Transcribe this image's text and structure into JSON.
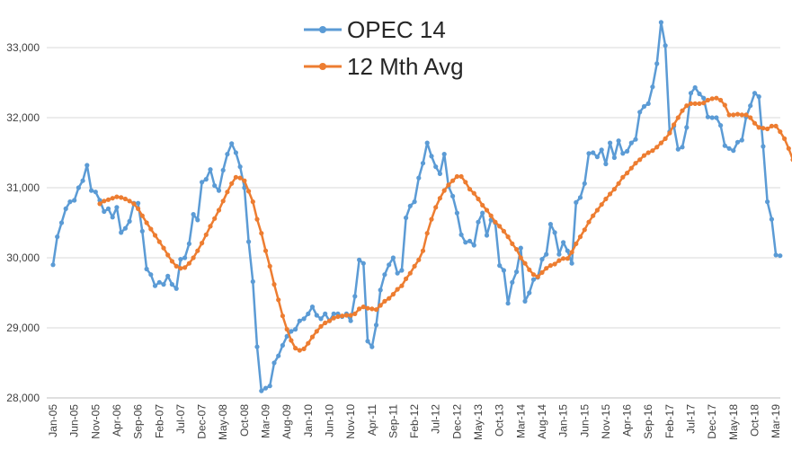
{
  "chart_data": {
    "type": "line",
    "title": "",
    "xlabel": "",
    "ylabel": "",
    "ylim": [
      28000,
      33500
    ],
    "yticks": [
      28000,
      29000,
      30000,
      31000,
      32000,
      33000
    ],
    "ytick_labels": [
      "28,000",
      "29,000",
      "30,000",
      "31,000",
      "32,000",
      "33,000"
    ],
    "xtick_labels": [
      "Jan-05",
      "Jun-05",
      "Nov-05",
      "Apr-06",
      "Sep-06",
      "Feb-07",
      "Jul-07",
      "Dec-07",
      "May-08",
      "Oct-08",
      "Mar-09",
      "Aug-09",
      "Jan-10",
      "Jun-10",
      "Nov-10",
      "Apr-11",
      "Sep-11",
      "Feb-12",
      "Jul-12",
      "Dec-12",
      "May-13",
      "Oct-13",
      "Mar-14",
      "Aug-14",
      "Jan-15",
      "Jun-15",
      "Nov-15",
      "Apr-16",
      "Sep-16",
      "Feb-17",
      "Jul-17",
      "Dec-17",
      "May-18",
      "Oct-18",
      "Mar-19"
    ],
    "grid": true,
    "legend_position": "top-center",
    "series": [
      {
        "name": "OPEC 14",
        "color": "#5B9BD5",
        "start_index": 0,
        "values": [
          29900,
          30300,
          30500,
          30700,
          30800,
          30820,
          31000,
          31100,
          31320,
          30960,
          30940,
          30820,
          30660,
          30700,
          30580,
          30720,
          30360,
          30420,
          30520,
          30780,
          30780,
          30380,
          29840,
          29760,
          29600,
          29650,
          29620,
          29740,
          29620,
          29560,
          29980,
          30000,
          30200,
          30620,
          30540,
          31080,
          31120,
          31260,
          31030,
          30960,
          31250,
          31480,
          31630,
          31500,
          31300,
          31000,
          30230,
          29660,
          28730,
          28100,
          28140,
          28170,
          28500,
          28600,
          28750,
          28880,
          28950,
          28980,
          29100,
          29130,
          29200,
          29300,
          29180,
          29130,
          29200,
          29100,
          29200,
          29200,
          29160,
          29200,
          29100,
          29450,
          29970,
          29920,
          28810,
          28730,
          29040,
          29540,
          29760,
          29900,
          30000,
          29780,
          29820,
          30570,
          30740,
          30800,
          31140,
          31350,
          31640,
          31450,
          31300,
          31200,
          31480,
          31020,
          30880,
          30640,
          30330,
          30220,
          30240,
          30180,
          30510,
          30640,
          30320,
          30540,
          30500,
          29890,
          29820,
          29350,
          29650,
          29800,
          30140,
          29380,
          29500,
          29690,
          29720,
          29980,
          30050,
          30480,
          30360,
          30050,
          30220,
          30100,
          29920,
          30790,
          30860,
          31060,
          31490,
          31500,
          31440,
          31540,
          31340,
          31640,
          31430,
          31670,
          31490,
          31520,
          31640,
          31690,
          32080,
          32160,
          32200,
          32440,
          32770,
          33360,
          33030,
          31800,
          31880,
          31550,
          31580,
          31860,
          32350,
          32430,
          32340,
          32280,
          32010,
          32000,
          32000,
          31890,
          31600,
          31560,
          31530,
          31650,
          31680,
          32010,
          32170,
          32350,
          32300,
          31590,
          30800,
          30550,
          30040,
          30030
        ]
      },
      {
        "name": "12 Mth Avg",
        "color": "#ED7D31",
        "start_index": 11,
        "values": [
          30770,
          30810,
          30830,
          30850,
          30870,
          30860,
          30840,
          30810,
          30770,
          30700,
          30600,
          30500,
          30410,
          30320,
          30230,
          30140,
          30040,
          29950,
          29880,
          29850,
          29860,
          29920,
          30000,
          30100,
          30210,
          30330,
          30450,
          30560,
          30680,
          30810,
          30940,
          31060,
          31150,
          31140,
          31100,
          30950,
          30800,
          30550,
          30350,
          30100,
          29880,
          29620,
          29400,
          29170,
          28980,
          28820,
          28710,
          28680,
          28700,
          28780,
          28870,
          28950,
          29020,
          29070,
          29100,
          29140,
          29160,
          29170,
          29180,
          29180,
          29200,
          29270,
          29300,
          29280,
          29270,
          29260,
          29320,
          29380,
          29420,
          29480,
          29550,
          29600,
          29700,
          29780,
          29880,
          29970,
          30100,
          30350,
          30550,
          30720,
          30850,
          30960,
          31040,
          31100,
          31160,
          31160,
          31080,
          30980,
          30920,
          30840,
          30750,
          30680,
          30600,
          30510,
          30450,
          30380,
          30300,
          30200,
          30120,
          30000,
          29920,
          29830,
          29760,
          29730,
          29790,
          29850,
          29890,
          29910,
          29960,
          29990,
          29990,
          30080,
          30200,
          30300,
          30400,
          30510,
          30600,
          30680,
          30760,
          30840,
          30910,
          30980,
          31060,
          31150,
          31210,
          31280,
          31350,
          31400,
          31460,
          31500,
          31530,
          31580,
          31640,
          31700,
          31780,
          31900,
          32000,
          32100,
          32170,
          32200,
          32200,
          32200,
          32210,
          32250,
          32270,
          32280,
          32250,
          32180,
          32040,
          32040,
          32050,
          32040,
          32040,
          32000,
          31920,
          31860,
          31850,
          31840,
          31880,
          31880,
          31800,
          31700,
          31560,
          31400
        ]
      }
    ]
  }
}
